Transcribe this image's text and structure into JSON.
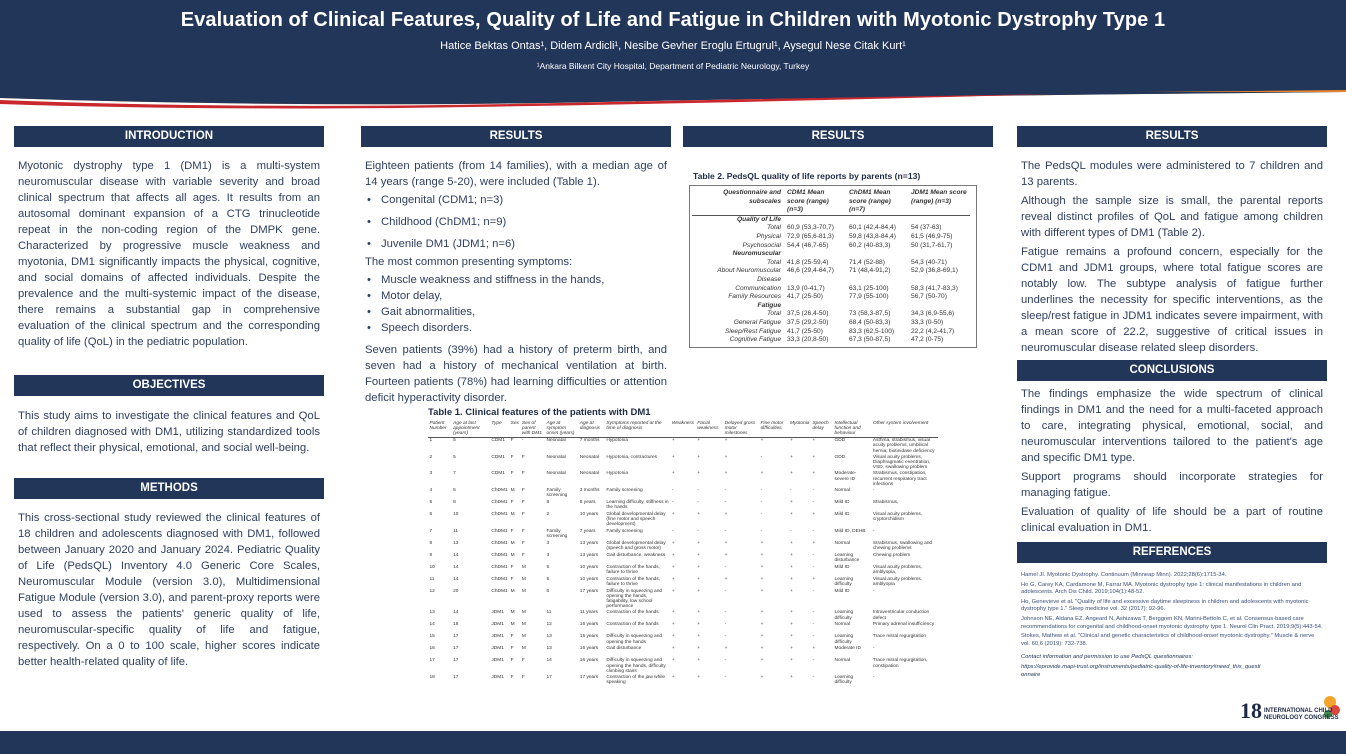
{
  "header": {
    "title": "Evaluation of Clinical Features, Quality of Life and Fatigue in Children with Myotonic Dystrophy Type 1",
    "authors": "Hatice Bektas Ontas¹, Didem Ardicli¹, Nesibe Gevher Eroglu Ertugrul¹, Aysegul Nese Citak Kurt¹",
    "affiliation": "¹Ankara Bilkent City Hospital, Department of Pediatric Neurology, Turkey"
  },
  "introduction": {
    "heading": "INTRODUCTION",
    "text": "Myotonic dystrophy type 1 (DM1) is a multi-system neuromuscular disease with variable severity and broad clinical spectrum that affects all ages. It results from an autosomal dominant expansion of a CTG trinucleotide repeat in the non-coding region of the DMPK gene. Characterized by progressive muscle weakness and myotonia, DM1 significantly impacts the physical, cognitive, and social domains of affected individuals. Despite the prevalence and the multi-systemic impact of the disease, there remains a substantial gap in comprehensive evaluation of the clinical spectrum and the corresponding quality of life (QoL) in the pediatric population."
  },
  "objectives": {
    "heading": "OBJECTIVES",
    "text": "This study aims to investigate the clinical features and QoL of children diagnosed with DM1, utilizing standardized tools that reflect their physical, emotional, and social well-being."
  },
  "methods": {
    "heading": "METHODS",
    "text": "This cross-sectional study reviewed the clinical features of 18 children and adolescents diagnosed with DM1, followed between January 2020 and January 2024. Pediatric Quality of Life (PedsQL) Inventory 4.0 Generic Core Scales, Neuromuscular Module (version 3.0), Multidimensional Fatigue Module (version 3.0), and parent-proxy reports were used to assess the patients' generic quality of life, neuromuscular-specific quality of life and fatigue, respectively. On a 0 to 100 scale, higher scores indicate better health-related quality of life."
  },
  "results1": {
    "heading": "RESULTS",
    "intro": "Eighteen patients (from 14 families), with a median age of 14 years (range 5-20), were included (Table 1).",
    "subtypes": [
      "Congenital (CDM1; n=3)",
      "Childhood (ChDM1; n=9)",
      "Juvenile DM1 (JDM1; n=6)"
    ],
    "symptoms_intro": "The most common presenting symptoms:",
    "symptoms": [
      "Muscle weakness and stiffness in the hands,",
      "Motor delay,",
      "Gait abnormalities,",
      "Speech disorders."
    ],
    "closing": "Seven patients (39%) had a history of preterm birth, and seven had a history of mechanical ventilation at birth. Fourteen patients (78%) had learning difficulties or attention deficit hyperactivity disorder."
  },
  "table1": {
    "title": "Table 1. Clinical features of the patients with DM1",
    "columns": [
      "Patient Number",
      "Age at last appointment (years)",
      "Type",
      "Sex",
      "Sex of parent with DM1",
      "Age at symptom onset (years)",
      "Age at diagnosis",
      "Symptoms reported at the time of diagnosis",
      "Weakness",
      "Facial weakness",
      "Delayed gross motor milestones",
      "Fine motor difficulties",
      "Myotonia",
      "Speech delay",
      "Intellectual function and behaviour",
      "Other system involvement"
    ],
    "rows": [
      [
        "1",
        "5",
        "CDM1",
        "F",
        "-",
        "Neonatal",
        "7 months",
        "Hypotonia",
        "+",
        "+",
        "+",
        "+",
        "+",
        "+",
        "GDD",
        "Asthma, strabismus, visual acuity problems, umbilical hernia, biotinidase deficiency"
      ],
      [
        "2",
        "5",
        "CDM1",
        "F",
        "F",
        "Neonatal",
        "Neonatal",
        "Hypotonia, contractures",
        "+",
        "+",
        "+",
        "-",
        "+",
        "+",
        "GDD",
        "Visual acuity problems, Diaphragmatic eventration, VSD, swallowing problem"
      ],
      [
        "3",
        "7",
        "CDM1",
        "F",
        "F",
        "Neonatal",
        "Neonatal",
        "Hypotonia",
        "+",
        "+",
        "+",
        "+",
        "+",
        "+",
        "Moderate-severe ID",
        "Strabismus, constipation, recurrent respiratory tract infections"
      ],
      [
        "4",
        "5",
        "ChDM1",
        "M",
        "F",
        "Family screening",
        "3 months",
        "Family screening",
        "-",
        "-",
        "-",
        "-",
        "-",
        "-",
        "Normal",
        "-"
      ],
      [
        "5",
        "8",
        "ChDM1",
        "F",
        "F",
        "8",
        "8 years",
        "Learning difficulty, stiffness in the hands",
        "-",
        "-",
        "-",
        "-",
        "+",
        "-",
        "Mild ID",
        "Strabismus,"
      ],
      [
        "6",
        "10",
        "ChDM1",
        "M",
        "F",
        "2",
        "10 years",
        "Global developmental delay (fine motor and speech development)",
        "+",
        "+",
        "+",
        "-",
        "+",
        "+",
        "Mild ID",
        "Visual acuity problems, cryptorchidism"
      ],
      [
        "7",
        "11",
        "ChDM1",
        "F",
        "F",
        "Family screening",
        "7 years",
        "Family screening",
        "-",
        "-",
        "-",
        "-",
        "-",
        "-",
        "Mild ID, DEHB",
        "-"
      ],
      [
        "8",
        "13",
        "ChDM1",
        "M",
        "F",
        "3",
        "13 years",
        "Global developmental delay (speech and gross motor)",
        "+",
        "+",
        "+",
        "+",
        "+",
        "+",
        "Normal",
        "Strabismus, swallowing and chewing problems"
      ],
      [
        "9",
        "14",
        "ChDM1",
        "M",
        "F",
        "3",
        "13 years",
        "Gait disturbance, weakness",
        "+",
        "+",
        "+",
        "+",
        "+",
        "-",
        "Learning disturbance",
        "Chewing problem"
      ],
      [
        "10",
        "14",
        "ChDM1",
        "F",
        "M",
        "5",
        "10 years",
        "Contraction of the hands, failure to thrive",
        "+",
        "+",
        "-",
        "+",
        "+",
        "-",
        "Mild ID",
        "Visual acuity problems, amblyopia,"
      ],
      [
        "11",
        "14",
        "ChDM1",
        "F",
        "M",
        "5",
        "10 years",
        "Contraction of the hands, failure to thrive",
        "+",
        "+",
        "+",
        "+",
        "+",
        "+",
        "Learning difficulty",
        "Visual acuity problems, amblyopia"
      ],
      [
        "12",
        "20",
        "ChDM1",
        "M",
        "M",
        "6",
        "17 years",
        "Difficulty in squeezing and opening the hands, fatigability, low school performance",
        "+",
        "+",
        "-",
        "+",
        "+",
        "-",
        "Mild ID",
        "-"
      ],
      [
        "13",
        "14",
        "JDM1",
        "M",
        "M",
        "11",
        "11 years",
        "Contraction of the hands",
        "+",
        "+",
        "-",
        "+",
        "+",
        "-",
        "Learning difficulty",
        "Intraventricular conduction defect"
      ],
      [
        "14",
        "18",
        "JDM1",
        "M",
        "M",
        "12",
        "16 years",
        "Contraction of the hands",
        "+",
        "+",
        "-",
        "+",
        "+",
        "-",
        "Normal",
        "Primary adrenal insufficiency"
      ],
      [
        "15",
        "17",
        "JDM1",
        "F",
        "M",
        "13",
        "15 years",
        "Difficulty in squeezing and opening the hands",
        "+",
        "+",
        "-",
        "+",
        "+",
        "-",
        "Learning difficulty",
        "Trace mitral regurgitation"
      ],
      [
        "16",
        "17",
        "JDM1",
        "F",
        "M",
        "13",
        "16 years",
        "Gait disturbance",
        "+",
        "+",
        "+",
        "+",
        "+",
        "+",
        "Moderate ID",
        "-"
      ],
      [
        "17",
        "17",
        "JDM1",
        "F",
        "F",
        "14",
        "16 years",
        "Difficulty in squeezing and opening the hands, difficulty climbing stairs",
        "+",
        "+",
        "-",
        "+",
        "+",
        "-",
        "Normal",
        "Trace mitral regurgitation, constipation"
      ],
      [
        "18",
        "17",
        "JDM1",
        "F",
        "F",
        "17",
        "17 years",
        "Contraction of the jaw while speaking",
        "+",
        "+",
        "-",
        "+",
        "+",
        "-",
        "Learning difficulty",
        "-"
      ]
    ]
  },
  "results2": {
    "heading": "RESULTS",
    "table_title": "Table 2. PedsQL quality of life reports by parents (n=13)",
    "columns": [
      "Questionnaire and subscales",
      "CDM1 Mean score (range) (n=3)",
      "ChDM1 Mean score (range) (n=7)",
      "JDM1 Mean score (range) (n=3)"
    ],
    "rows": [
      {
        "kind": "group",
        "label": "Quality of Life",
        "v": [
          "",
          "",
          ""
        ]
      },
      {
        "kind": "item",
        "label": "Total",
        "v": [
          "60,9 (53,3-70,7)",
          "60,1 (42,4-84,4)",
          "54 (37-63)"
        ]
      },
      {
        "kind": "item",
        "label": "Physical",
        "v": [
          "72,9 (65,6-81,3)",
          "59,8 (43,8-84,4)",
          "61,5 (46,9-75)"
        ]
      },
      {
        "kind": "item",
        "label": "Psychosocial",
        "v": [
          "54,4 (46,7-65)",
          "60,2 (40-83,3)",
          "50 (31,7-61,7)"
        ]
      },
      {
        "kind": "group",
        "label": "Neuromuscular",
        "v": [
          "",
          "",
          ""
        ]
      },
      {
        "kind": "item",
        "label": "Total",
        "v": [
          "41,8 (25-59,4)",
          "71,4 (52-88)",
          "54,3 (40-71)"
        ]
      },
      {
        "kind": "item",
        "label": "About Neuromuscular Disease",
        "v": [
          "46,6 (29,4-64,7)",
          "71 (48,4-91,2)",
          "52,9 (36,8-69,1)"
        ]
      },
      {
        "kind": "item",
        "label": "Communication",
        "v": [
          "13,9 (0-41,7)",
          "63,1 (25-100)",
          "58,3 (41,7-83,3)"
        ]
      },
      {
        "kind": "item",
        "label": "Family Resources",
        "v": [
          "41,7 (25-50)",
          "77,9 (55-100)",
          "56,7 (50-70)"
        ]
      },
      {
        "kind": "group",
        "label": "Fatigue",
        "v": [
          "",
          "",
          ""
        ]
      },
      {
        "kind": "item",
        "label": "Total",
        "v": [
          "37,5 (26,4-50)",
          "73 (58,3-87,5)",
          "34,3 (6,9-55,6)"
        ]
      },
      {
        "kind": "item",
        "label": "General Fatigue",
        "v": [
          "37,5 (29,2-50)",
          "68,4 (50-83,3)",
          "33,3 (0-50)"
        ]
      },
      {
        "kind": "item",
        "label": "Sleep/Rest Fatigue",
        "v": [
          "41,7 (25-50)",
          "83,3 (62,5-100)",
          "22,2 (4,2-41,7)"
        ]
      },
      {
        "kind": "item",
        "label": "Cognitive Fatigue",
        "v": [
          "33,3 (20,8-50)",
          "67,3 (50-87,5)",
          "47,2 (0-75)"
        ]
      }
    ]
  },
  "results3": {
    "heading": "RESULTS",
    "p1": "The PedsQL modules were administered to 7 children and 13 parents.",
    "p2": "Although the sample size is small, the parental reports reveal distinct profiles of QoL and fatigue among children with different types of DM1 (Table 2).",
    "p3": "Fatigue remains a profound concern, especially for the CDM1 and JDM1 groups, where total fatigue scores are notably low. The subtype analysis of fatigue further underlines the necessity for specific interventions, as the sleep/rest fatigue in JDM1 indicates severe impairment, with a mean score of 22.2, suggestive of critical issues in neuromuscular disease related sleep disorders."
  },
  "conclusions": {
    "heading": "CONCLUSIONS",
    "p1": "The findings emphasize the wide spectrum of clinical findings in DM1 and the need for a multi-faceted approach to care, integrating physical, emotional, social, and neuromuscular interventions tailored to the patient's age and specific DM1 type.",
    "p2": "Support programs should incorporate strategies for managing fatigue.",
    "p3": "Evaluation of quality of life should be a part of routine clinical evaluation in DM1."
  },
  "references": {
    "heading": "REFERENCES",
    "items": [
      "Hamel JI. Myotonic Dystrophy. Continuum (Minneap Minn). 2022;28(6):1715-34.",
      "Ho G, Carey KA, Cardamone M, Farrar MA. Myotonic dystrophy type 1: clinical manifestations in children and adolescents. Arch Dis Child. 2019;104(1):48-52.",
      "Ho, Genevieve et al. \"Quality of life and excessive daytime sleepiness in children and adolescents with myotonic dystrophy type 1.\" Sleep medicine vol. 32 (2017): 92-96.",
      "Johnson NE, Aldana EZ, Angeard N, Ashizawa T, Berggren KN, Marini-Bettolo C, et al. Consensus-based care recommendations for congenital and childhood-onset myotonic dystrophy type 1. Neurol Clin Pract. 2019;9(5):443-54.",
      "Stokes, Mathew et al. \"Clinical and genetic characteristics of childhood-onset myotonic dystrophy.\" Muscle & nerve vol. 60,6 (2019): 732-738."
    ],
    "contact_label": "Contact information and permission to use PedsQL questionnaires:",
    "contact_url": "https://eprovide.mapi-trust.org/instruments/pediatric-quality-of-life-inventory#need_this_questionnaire"
  },
  "logo": {
    "number": "18",
    "line1": "INTERNATIONAL CHILD",
    "line2": "NEUROLOGY CONGRESS"
  },
  "colors": {
    "navy": "#22365a",
    "orange": "#e8852c",
    "red": "#c8282d"
  }
}
